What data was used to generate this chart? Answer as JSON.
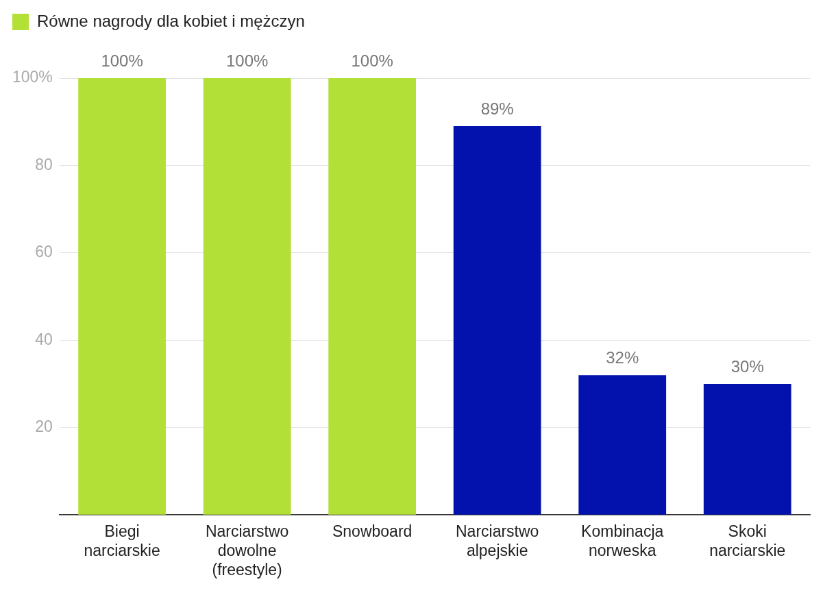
{
  "chart_data": {
    "type": "bar",
    "categories": [
      "Biegi narciarskie",
      "Narciarstwo dowolne (freestyle)",
      "Snowboard",
      "Narciarstwo alpejskie",
      "Kombinacja norweska",
      "Skoki narciarskie"
    ],
    "series": [
      {
        "name": "Równe nagrody dla kobiet i mężczyn",
        "color": "#b3e036",
        "values": [
          100,
          100,
          100,
          null,
          null,
          null
        ],
        "value_labels": [
          "100%",
          "100%",
          "100%",
          null,
          null,
          null
        ]
      },
      {
        "color": "#0312ad",
        "values": [
          null,
          null,
          null,
          89,
          32,
          30
        ],
        "value_labels": [
          null,
          null,
          null,
          "89%",
          "32%",
          "30%"
        ]
      }
    ],
    "ylim": [
      0,
      100
    ],
    "yticks": [
      {
        "value": 0,
        "label": null
      },
      20,
      40,
      60,
      80,
      {
        "value": 100,
        "label": "100%"
      }
    ],
    "grid": "y",
    "legend": "top left"
  }
}
